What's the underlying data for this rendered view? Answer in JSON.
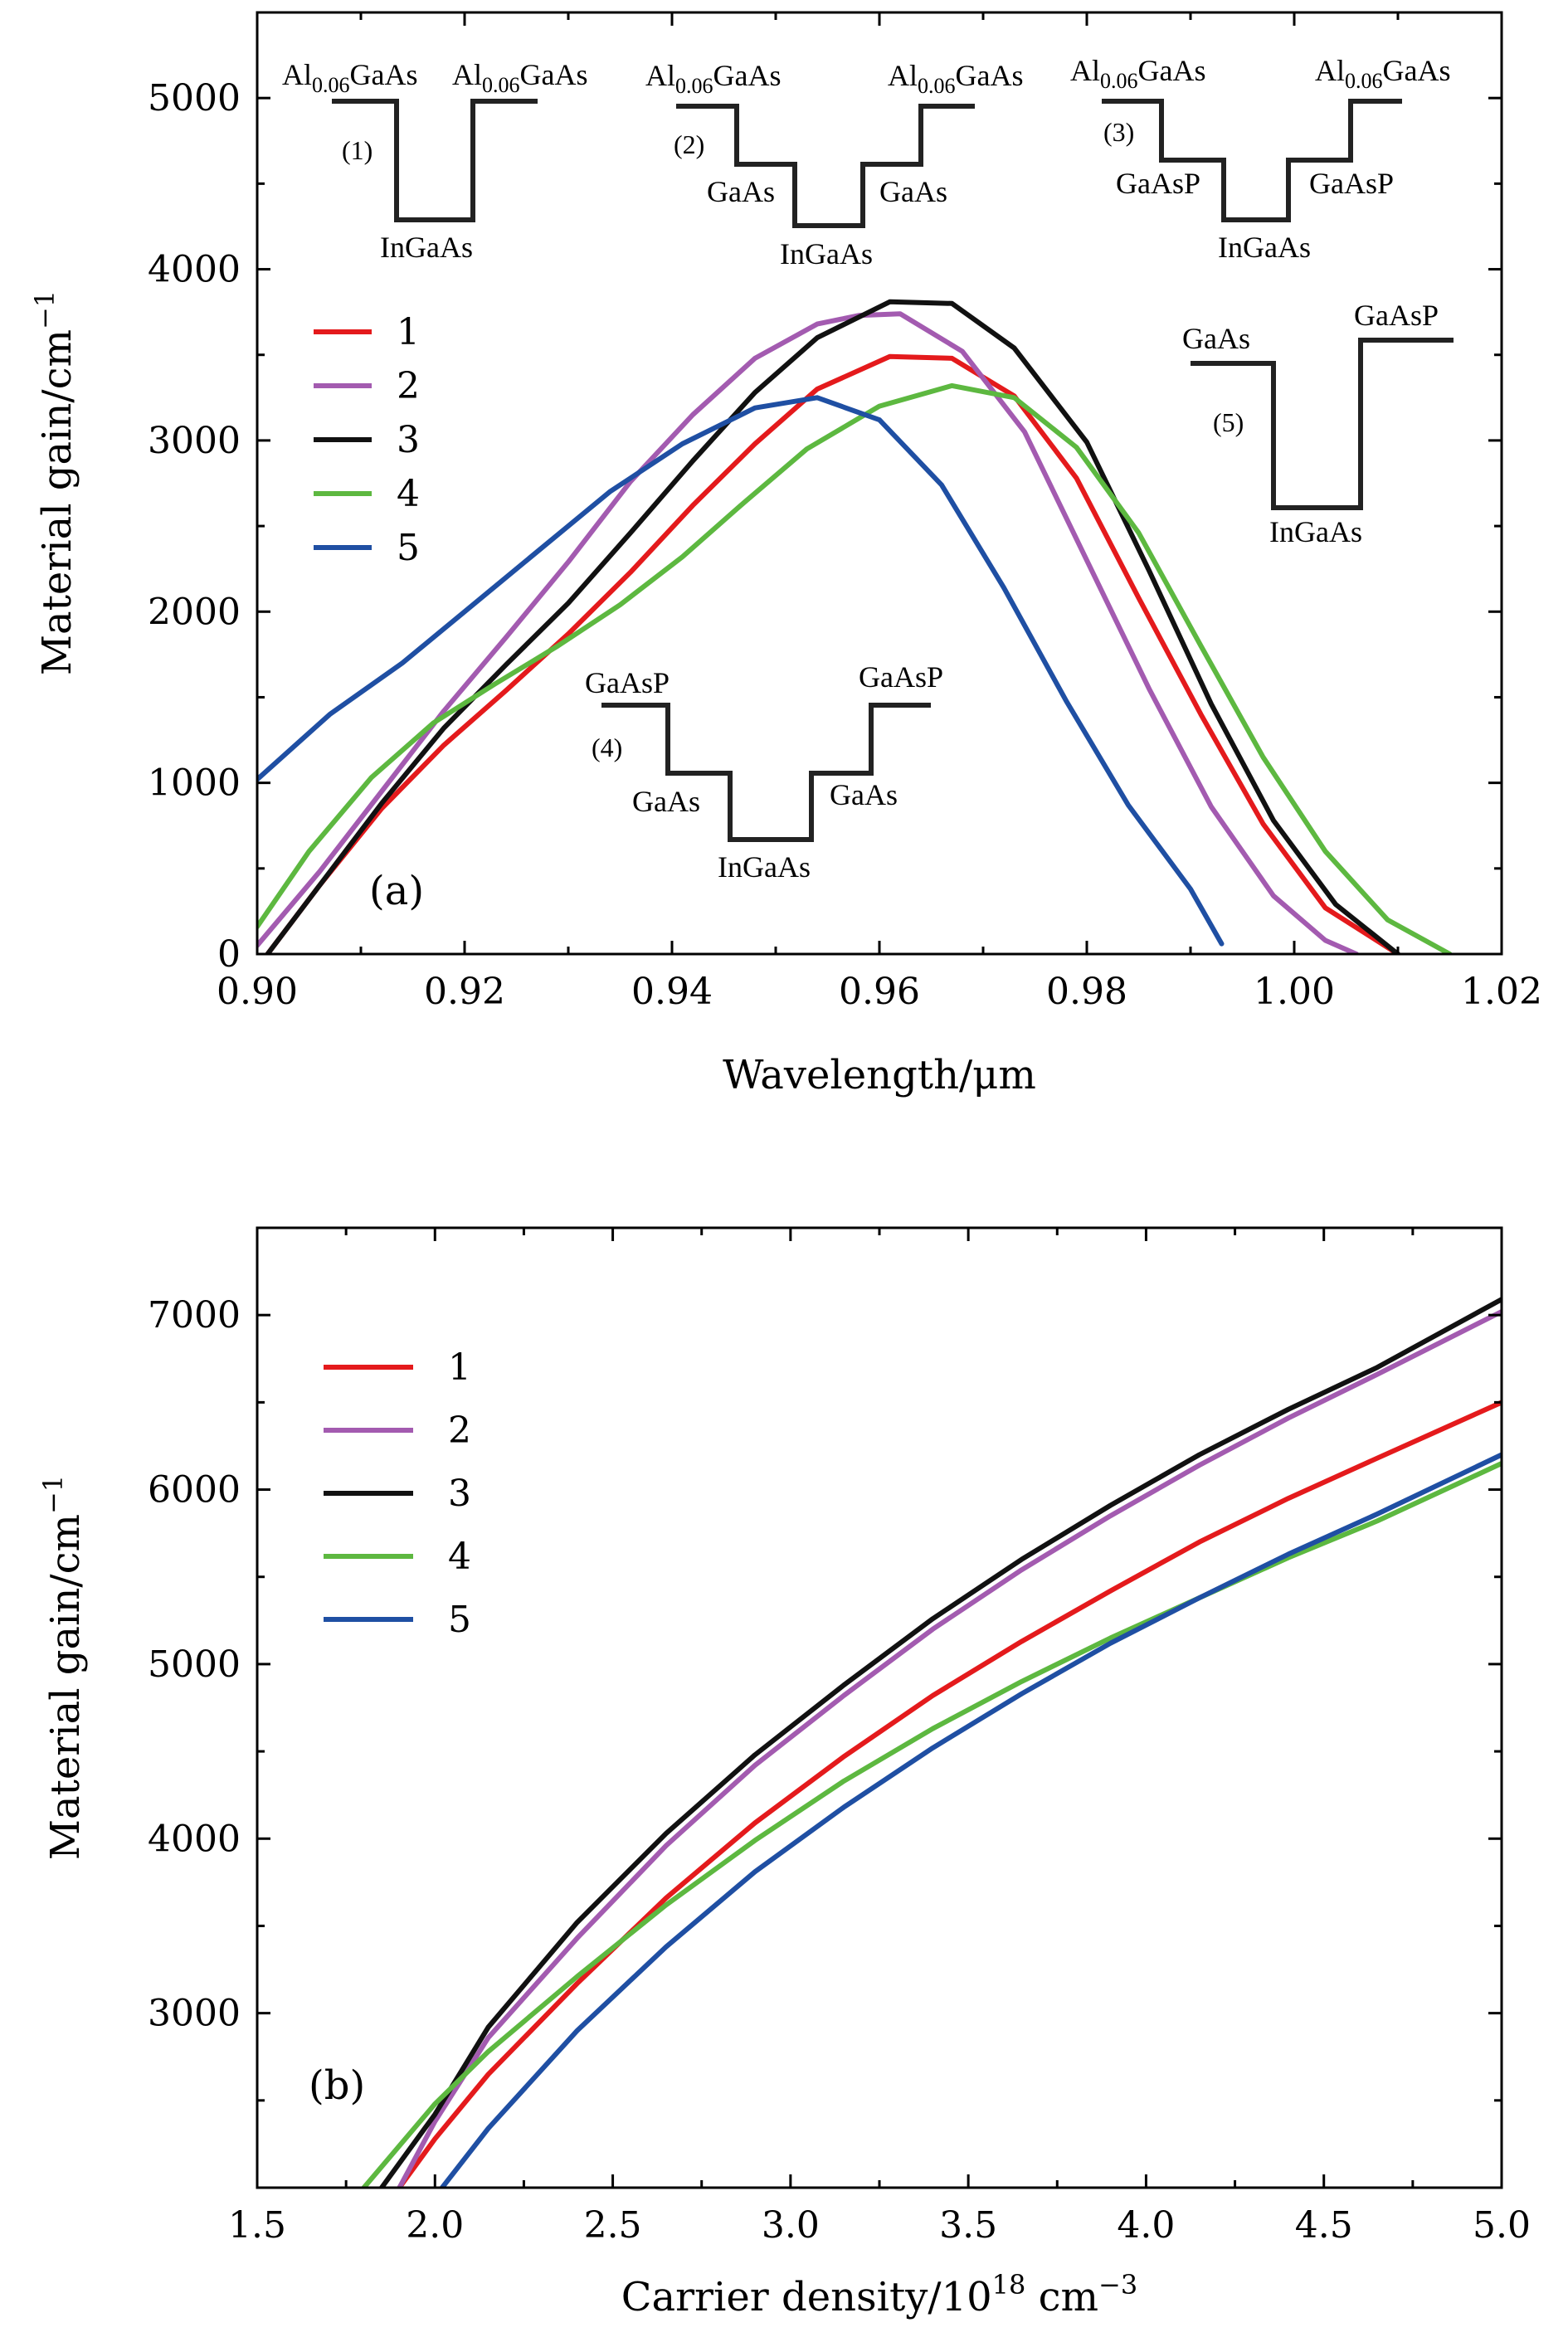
{
  "colors": {
    "s1": "#e41a1c",
    "s2": "#a35bb0",
    "s3": "#111111",
    "s4": "#5db840",
    "s5": "#1f4fa3"
  },
  "chart_data": [
    {
      "type": "line",
      "panel_label": "(a)",
      "xlabel": "Wavelength/μm",
      "ylabel": "Material gain/cm",
      "ylabel_sup": "−1",
      "xlim": [
        0.9,
        1.02
      ],
      "ylim": [
        0,
        5500
      ],
      "xticks": [
        "0.90",
        "0.92",
        "0.94",
        "0.96",
        "0.98",
        "1.00",
        "1.02"
      ],
      "yticks": [
        "0",
        "1000",
        "2000",
        "3000",
        "4000",
        "5000"
      ],
      "legend": [
        "1",
        "2",
        "3",
        "4",
        "5"
      ],
      "series": [
        {
          "name": "1",
          "x": [
            0.901,
            0.906,
            0.912,
            0.918,
            0.924,
            0.93,
            0.936,
            0.942,
            0.948,
            0.954,
            0.961,
            0.967,
            0.973,
            0.979,
            0.985,
            0.991,
            0.997,
            1.003,
            1.01
          ],
          "y": [
            0,
            400,
            850,
            1220,
            1540,
            1870,
            2230,
            2620,
            2980,
            3300,
            3490,
            3480,
            3260,
            2780,
            2080,
            1400,
            760,
            270,
            0
          ]
        },
        {
          "name": "2",
          "x": [
            0.9,
            0.906,
            0.912,
            0.918,
            0.924,
            0.93,
            0.936,
            0.942,
            0.948,
            0.954,
            0.958,
            0.962,
            0.968,
            0.974,
            0.98,
            0.986,
            0.992,
            0.998,
            1.003,
            1.006
          ],
          "y": [
            50,
            480,
            950,
            1420,
            1850,
            2290,
            2760,
            3150,
            3480,
            3680,
            3730,
            3740,
            3520,
            3050,
            2300,
            1550,
            860,
            340,
            80,
            0
          ]
        },
        {
          "name": "3",
          "x": [
            0.901,
            0.906,
            0.912,
            0.918,
            0.924,
            0.93,
            0.936,
            0.942,
            0.948,
            0.954,
            0.961,
            0.967,
            0.973,
            0.98,
            0.986,
            0.992,
            0.998,
            1.004,
            1.01
          ],
          "y": [
            0,
            400,
            880,
            1320,
            1690,
            2050,
            2460,
            2880,
            3280,
            3600,
            3810,
            3800,
            3540,
            2990,
            2240,
            1460,
            780,
            290,
            0
          ]
        },
        {
          "name": "4",
          "x": [
            0.9,
            0.905,
            0.911,
            0.917,
            0.923,
            0.929,
            0.935,
            0.941,
            0.947,
            0.953,
            0.96,
            0.967,
            0.973,
            0.979,
            0.985,
            0.991,
            0.997,
            1.003,
            1.009,
            1.015
          ],
          "y": [
            160,
            600,
            1030,
            1350,
            1580,
            1800,
            2040,
            2320,
            2640,
            2950,
            3200,
            3320,
            3250,
            2960,
            2460,
            1800,
            1150,
            600,
            200,
            0
          ]
        },
        {
          "name": "5",
          "x": [
            0.9,
            0.907,
            0.914,
            0.92,
            0.927,
            0.934,
            0.941,
            0.948,
            0.954,
            0.96,
            0.966,
            0.972,
            0.978,
            0.984,
            0.99,
            0.993
          ],
          "y": [
            1020,
            1400,
            1700,
            2000,
            2350,
            2700,
            2980,
            3190,
            3250,
            3120,
            2740,
            2140,
            1480,
            870,
            380,
            60
          ]
        }
      ],
      "insets": [
        {
          "id": "1",
          "barrier": "Al",
          "barrier_sub": "0.06",
          "barrier_rest": "GaAs",
          "well": "InGaAs"
        },
        {
          "id": "2",
          "barrier": "Al",
          "barrier_sub": "0.06",
          "barrier_rest": "GaAs",
          "step": "GaAs",
          "well": "InGaAs"
        },
        {
          "id": "3",
          "barrier": "Al",
          "barrier_sub": "0.06",
          "barrier_rest": "GaAs",
          "step": "GaAsP",
          "well": "InGaAs"
        },
        {
          "id": "4",
          "barrier": "GaAsP",
          "step": "GaAs",
          "well": "InGaAs"
        },
        {
          "id": "5",
          "left": "GaAs",
          "right": "GaAsP",
          "well": "InGaAs"
        }
      ]
    },
    {
      "type": "line",
      "panel_label": "(b)",
      "xlabel": "Carrier density/10",
      "xlabel_sup": "18",
      "xlabel_unit": "cm",
      "xlabel_unit_sup": "−3",
      "ylabel": "Material gain/cm",
      "ylabel_sup": "−1",
      "xlim": [
        1.5,
        5.0
      ],
      "ylim": [
        2000,
        7500
      ],
      "xticks": [
        "1.5",
        "2.0",
        "2.5",
        "3.0",
        "3.5",
        "4.0",
        "4.5",
        "5.0"
      ],
      "yticks": [
        "3000",
        "4000",
        "5000",
        "6000",
        "7000"
      ],
      "legend": [
        "1",
        "2",
        "3",
        "4",
        "5"
      ],
      "series": [
        {
          "name": "1",
          "x": [
            1.9,
            2.0,
            2.15,
            2.4,
            2.65,
            2.9,
            3.15,
            3.4,
            3.65,
            3.9,
            4.15,
            4.4,
            4.65,
            5.0
          ],
          "y": [
            2000,
            2280,
            2650,
            3170,
            3660,
            4090,
            4470,
            4820,
            5130,
            5420,
            5700,
            5950,
            6180,
            6500
          ]
        },
        {
          "name": "2",
          "x": [
            1.9,
            2.0,
            2.15,
            2.4,
            2.65,
            2.9,
            3.15,
            3.4,
            3.65,
            3.9,
            4.15,
            4.4,
            4.65,
            5.0
          ],
          "y": [
            2000,
            2380,
            2860,
            3430,
            3960,
            4420,
            4820,
            5200,
            5540,
            5850,
            6140,
            6410,
            6660,
            7020
          ]
        },
        {
          "name": "3",
          "x": [
            1.85,
            2.0,
            2.15,
            2.4,
            2.65,
            2.9,
            3.15,
            3.4,
            3.65,
            3.9,
            4.15,
            4.4,
            4.65,
            5.0
          ],
          "y": [
            2000,
            2420,
            2920,
            3520,
            4030,
            4480,
            4880,
            5260,
            5600,
            5910,
            6200,
            6460,
            6700,
            7090
          ]
        },
        {
          "name": "4",
          "x": [
            1.8,
            2.0,
            2.15,
            2.4,
            2.65,
            2.9,
            3.15,
            3.4,
            3.65,
            3.9,
            4.15,
            4.4,
            4.65,
            5.0
          ],
          "y": [
            2000,
            2480,
            2780,
            3210,
            3620,
            3990,
            4330,
            4630,
            4900,
            5150,
            5380,
            5610,
            5820,
            6150
          ]
        },
        {
          "name": "5",
          "x": [
            2.02,
            2.15,
            2.4,
            2.65,
            2.9,
            3.15,
            3.4,
            3.65,
            3.9,
            4.15,
            4.4,
            4.65,
            5.0
          ],
          "y": [
            2000,
            2340,
            2900,
            3380,
            3810,
            4180,
            4520,
            4830,
            5120,
            5380,
            5630,
            5860,
            6200
          ]
        }
      ]
    }
  ]
}
